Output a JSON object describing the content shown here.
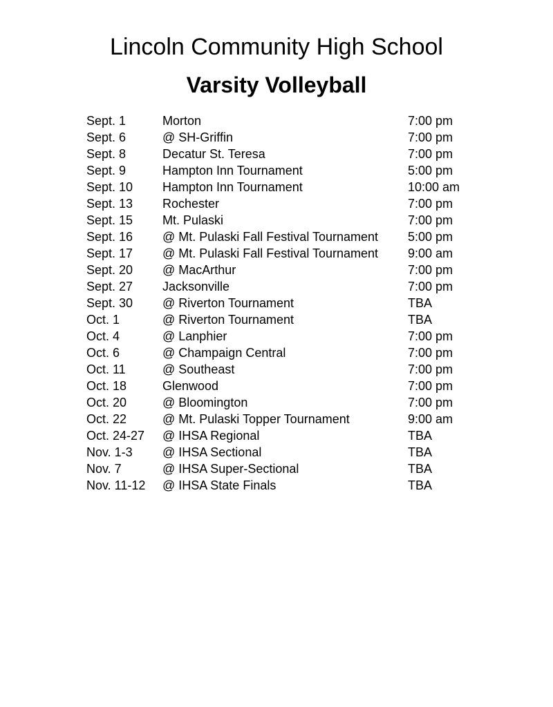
{
  "page": {
    "school_name": "Lincoln Community High School",
    "team_title": "Varsity Volleyball",
    "text_color": "#000000",
    "background_color": "#ffffff"
  },
  "schedule": {
    "rows": [
      {
        "date": "Sept. 1",
        "opponent": "Morton",
        "time": "7:00 pm"
      },
      {
        "date": "Sept. 6",
        "opponent": "@ SH-Griffin",
        "time": "7:00 pm"
      },
      {
        "date": "Sept. 8",
        "opponent": "Decatur St. Teresa",
        "time": "7:00 pm"
      },
      {
        "date": "Sept. 9",
        "opponent": "Hampton Inn Tournament",
        "time": "5:00 pm"
      },
      {
        "date": "Sept. 10",
        "opponent": "Hampton Inn Tournament",
        "time": "10:00 am"
      },
      {
        "date": "Sept. 13",
        "opponent": "Rochester",
        "time": "7:00 pm"
      },
      {
        "date": "Sept. 15",
        "opponent": "Mt. Pulaski",
        "time": "7:00 pm"
      },
      {
        "date": "Sept. 16",
        "opponent": "@ Mt. Pulaski Fall Festival Tournament",
        "time": "5:00 pm"
      },
      {
        "date": "Sept. 17",
        "opponent": "@ Mt. Pulaski Fall Festival Tournament",
        "time": "9:00 am"
      },
      {
        "date": "Sept. 20",
        "opponent": "@ MacArthur",
        "time": "7:00 pm"
      },
      {
        "date": "Sept. 27",
        "opponent": "Jacksonville",
        "time": "7:00 pm"
      },
      {
        "date": "Sept. 30",
        "opponent": "@ Riverton Tournament",
        "time": "TBA"
      },
      {
        "date": "Oct. 1",
        "opponent": "@ Riverton Tournament",
        "time": "TBA"
      },
      {
        "date": "Oct. 4",
        "opponent": "@ Lanphier",
        "time": "7:00 pm"
      },
      {
        "date": "Oct. 6",
        "opponent": "@ Champaign Central",
        "time": "7:00 pm"
      },
      {
        "date": "Oct. 11",
        "opponent": "@ Southeast",
        "time": "7:00 pm"
      },
      {
        "date": "Oct. 18",
        "opponent": "Glenwood",
        "time": "7:00 pm"
      },
      {
        "date": "Oct. 20",
        "opponent": "@ Bloomington",
        "time": "7:00 pm"
      },
      {
        "date": "Oct. 22",
        "opponent": "@ Mt. Pulaski Topper Tournament",
        "time": "9:00 am"
      },
      {
        "date": "Oct. 24-27",
        "opponent": "@ IHSA Regional",
        "time": "TBA"
      },
      {
        "date": "Nov. 1-3",
        "opponent": "@ IHSA Sectional",
        "time": "TBA"
      },
      {
        "date": "Nov. 7",
        "opponent": "@ IHSA Super-Sectional",
        "time": "TBA"
      },
      {
        "date": "Nov. 11-12",
        "opponent": "@ IHSA State Finals",
        "time": "TBA"
      }
    ]
  }
}
